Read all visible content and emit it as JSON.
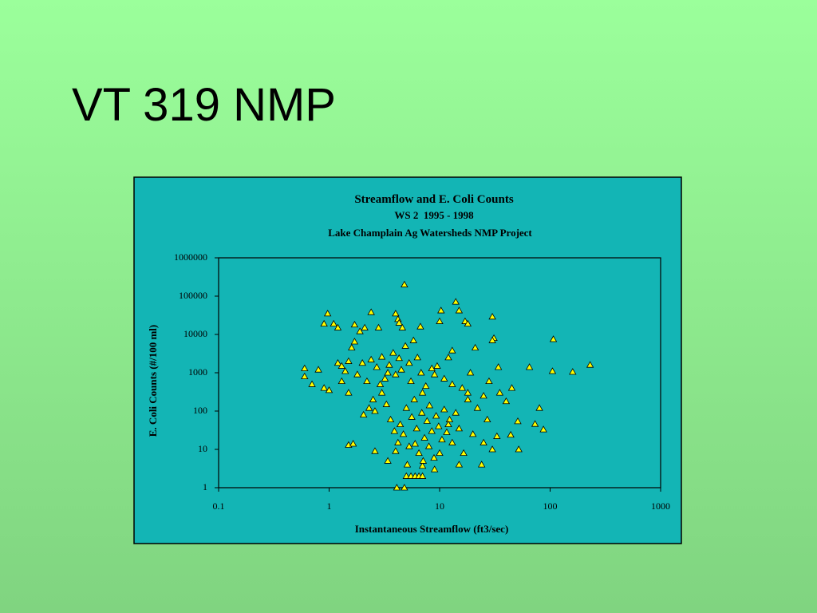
{
  "slide_title": "VT 319 NMP",
  "chart_data": {
    "type": "scatter",
    "title": "Streamflow and E. Coli Counts",
    "subtitle": "WS 2  1995 - 1998",
    "subtitle2": "Lake Champlain Ag Watersheds NMP Project",
    "x_label": "Instantaneous Streamflow (ft3/sec)",
    "y_label": "E. Coli Counts (#/100 ml)",
    "x_log": true,
    "y_log": true,
    "xlim": [
      0.1,
      1000
    ],
    "ylim": [
      1,
      1000000
    ],
    "xticks": [
      0.1,
      1,
      10,
      100,
      1000
    ],
    "yticks": [
      1,
      10,
      100,
      1000,
      10000,
      100000,
      1000000
    ],
    "color": "#ffff00",
    "x": [
      0.6,
      0.6,
      0.97,
      0.9,
      1.1,
      1.2,
      0.7,
      0.9,
      1.0,
      4.8,
      14,
      10.3,
      15,
      30,
      2.4,
      4.0,
      4.2,
      4.3,
      10,
      17,
      18,
      6.7,
      4.6,
      2.1,
      1.9,
      1.7,
      2.8,
      107,
      31,
      30,
      65,
      105,
      160,
      230,
      34,
      80,
      73,
      87,
      51,
      52,
      44,
      4.8,
      4.1,
      5,
      5.5,
      6,
      6.5,
      7,
      15,
      24,
      7,
      2.6,
      1.5,
      1.65,
      2.05,
      2.6,
      0.8,
      1.2,
      1.3,
      1.4,
      1.5,
      1.6,
      1.7,
      1.8,
      2.0,
      2.2,
      2.4,
      2.7,
      3.0,
      3.2,
      3.5,
      3.8,
      4.0,
      4.3,
      4.5,
      4.9,
      5.3,
      5.8,
      6.3,
      6.8,
      7.5,
      8.5,
      9.5,
      11,
      12,
      13,
      16,
      19,
      21,
      25,
      28,
      35,
      40,
      45,
      3.0,
      3.3,
      3.6,
      3.9,
      4.2,
      4.4,
      4.7,
      5.0,
      5.3,
      5.6,
      5.9,
      6.2,
      6.5,
      6.9,
      7.3,
      7.7,
      8.1,
      8.5,
      8.9,
      9.3,
      9.8,
      10.5,
      11,
      11.6,
      12.3,
      13,
      14,
      15,
      16.5,
      18,
      20,
      22,
      25,
      27,
      30,
      33,
      3.4,
      4.0,
      5.1,
      6.0,
      7.1,
      8.0,
      9.0,
      10,
      12,
      1.3,
      1.5,
      2.3,
      2.5,
      2.9,
      3.4,
      5.5,
      7.0,
      9.0,
      13,
      18
    ],
    "values": [
      1300,
      800,
      35000,
      19000,
      19000,
      15000,
      500,
      400,
      350,
      200000,
      71000,
      42000,
      42000,
      29000,
      38000,
      35000,
      25000,
      20000,
      22000,
      22000,
      19000,
      16000,
      15000,
      15000,
      12000,
      18000,
      15000,
      7500,
      8000,
      7000,
      1400,
      1100,
      1050,
      1600,
      1400,
      120,
      46,
      33,
      54,
      10,
      24,
      1,
      1,
      2,
      2,
      2,
      2,
      2,
      4,
      4,
      3.7,
      9,
      13,
      14,
      80,
      100,
      1200,
      1800,
      1500,
      1100,
      2000,
      4500,
      6500,
      900,
      1800,
      600,
      2200,
      1400,
      2600,
      700,
      1600,
      3300,
      900,
      2400,
      1200,
      5000,
      1800,
      7000,
      2500,
      1000,
      450,
      1300,
      1500,
      700,
      2500,
      3800,
      400,
      1000,
      4500,
      250,
      600,
      300,
      180,
      400,
      300,
      150,
      60,
      30,
      15,
      45,
      25,
      120,
      12,
      70,
      200,
      35,
      8,
      90,
      20,
      55,
      140,
      30,
      6,
      75,
      40,
      18,
      110,
      28,
      60,
      15,
      90,
      35,
      8,
      200,
      25,
      120,
      15,
      60,
      10,
      22,
      5,
      9,
      4,
      14,
      5,
      12,
      3,
      8,
      45,
      600,
      300,
      120,
      200,
      500,
      1000,
      600,
      300,
      900,
      500,
      300
    ]
  }
}
